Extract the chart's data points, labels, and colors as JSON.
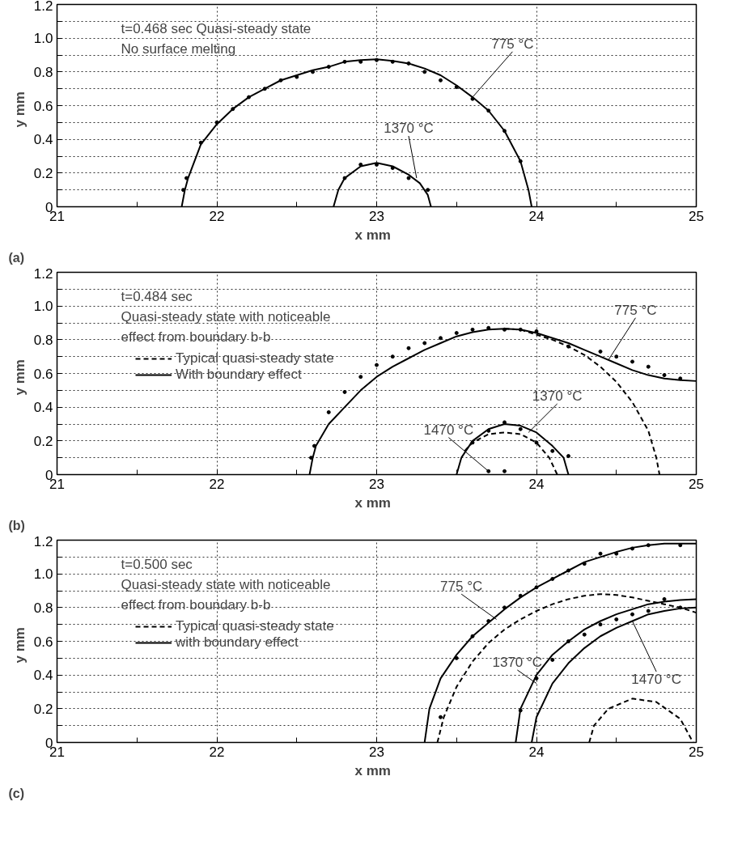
{
  "chart_data": [
    {
      "type": "line",
      "title": "(a)",
      "xlabel": "x   mm",
      "ylabel": "y   mm",
      "xlim": [
        21,
        25
      ],
      "ylim": [
        0,
        1.2
      ],
      "xticks": [
        21,
        {
          "value": 21.5,
          "label": null
        },
        22,
        {
          "value": 22.5,
          "label": null
        },
        23,
        {
          "value": 23.5,
          "label": null
        },
        24,
        {
          "value": 24.5,
          "label": null
        },
        25
      ],
      "yticks": [
        0,
        {
          "value": 0.1,
          "label": null
        },
        0.2,
        {
          "value": 0.3,
          "label": null
        },
        0.4,
        {
          "value": 0.5,
          "label": null
        },
        0.6,
        {
          "value": 0.7,
          "label": null
        },
        0.8,
        {
          "value": 0.9,
          "label": null
        },
        {
          "value": 1.0,
          "label": "1.0"
        },
        {
          "value": 1.1,
          "label": null
        },
        1.2
      ],
      "grid": true,
      "line_style": "solid",
      "legend": false,
      "annotations": [
        "t=0.468 sec    Quasi-steady state",
        "No surface melting",
        {
          "text": "775 °C",
          "x": 23.6,
          "y": 0.65
        },
        {
          "text": "1370 °C",
          "x": 23.25,
          "y": 0.17
        }
      ],
      "series": [
        {
          "color": "#000000",
          "x": [
            21.78,
            21.8,
            21.82,
            21.9,
            22.0,
            22.1,
            22.2,
            22.3,
            22.4,
            22.5,
            22.6,
            22.7,
            22.8,
            22.9,
            23.0,
            23.1,
            23.2,
            23.3,
            23.4,
            23.5,
            23.6,
            23.7,
            23.8,
            23.9,
            23.95,
            23.97
          ],
          "values": [
            0,
            0.1,
            0.17,
            0.37,
            0.49,
            0.58,
            0.65,
            0.7,
            0.75,
            0.78,
            0.81,
            0.83,
            0.86,
            0.87,
            0.875,
            0.865,
            0.85,
            0.82,
            0.78,
            0.72,
            0.65,
            0.57,
            0.45,
            0.27,
            0.1,
            0
          ]
        },
        {
          "color": "#000000",
          "x": [
            22.73,
            22.76,
            22.8,
            22.9,
            23.0,
            23.1,
            23.2,
            23.27,
            23.32,
            23.34
          ],
          "values": [
            0,
            0.1,
            0.17,
            0.24,
            0.26,
            0.24,
            0.19,
            0.14,
            0.07,
            0
          ]
        },
        {
          "type": "scatter",
          "marker": "circle",
          "color": "#000000",
          "x": [
            21.79,
            21.81,
            21.9,
            22.0,
            22.1,
            22.2,
            22.3,
            22.4,
            22.5,
            22.6,
            22.7,
            22.8,
            22.9,
            23.0,
            23.1,
            23.2,
            23.3,
            23.4,
            23.5,
            23.6,
            23.7,
            23.8,
            23.9
          ],
          "values": [
            0.1,
            0.17,
            0.38,
            0.5,
            0.58,
            0.65,
            0.7,
            0.75,
            0.77,
            0.8,
            0.83,
            0.86,
            0.86,
            0.87,
            0.86,
            0.85,
            0.8,
            0.75,
            0.71,
            0.64,
            0.57,
            0.45,
            0.27
          ]
        },
        {
          "type": "scatter",
          "marker": "circle",
          "color": "#000000",
          "x": [
            22.8,
            22.9,
            23.0,
            23.1,
            23.2,
            23.32
          ],
          "values": [
            0.17,
            0.25,
            0.25,
            0.23,
            0.17,
            0.1
          ]
        }
      ]
    },
    {
      "type": "line",
      "title": "(b)",
      "xlabel": "x   mm",
      "ylabel": "y   mm",
      "xlim": [
        21,
        25
      ],
      "ylim": [
        0,
        1.2
      ],
      "xticks": [
        21,
        {
          "value": 21.5,
          "label": null
        },
        22,
        {
          "value": 22.5,
          "label": null
        },
        23,
        {
          "value": 23.5,
          "label": null
        },
        24,
        {
          "value": 24.5,
          "label": null
        },
        25
      ],
      "yticks": [
        0,
        {
          "value": 0.1,
          "label": null
        },
        0.2,
        {
          "value": 0.3,
          "label": null
        },
        0.4,
        {
          "value": 0.5,
          "label": null
        },
        0.6,
        {
          "value": 0.7,
          "label": null
        },
        0.8,
        {
          "value": 0.9,
          "label": null
        },
        {
          "value": 1.0,
          "label": "1.0"
        },
        {
          "value": 1.1,
          "label": null
        },
        1.2
      ],
      "grid": true,
      "legend": "top left",
      "annotations": [
        "t=0.484 sec",
        "Quasi-steady state with noticeable",
        "effect from boundary b-b",
        {
          "text": "775 °C",
          "x": 24.45,
          "y": 0.68
        },
        {
          "text": "1370 °C",
          "x": 23.95,
          "y": 0.25
        },
        {
          "text": "1470 °C",
          "x": 23.7,
          "y": 0.02
        }
      ],
      "series": [
        {
          "line_style": "dashed",
          "name": "Typical quasi-steady state",
          "color": "#000000",
          "x": [
            23.8,
            23.9,
            24.0,
            24.1,
            24.2,
            24.3,
            24.4,
            24.5,
            24.6,
            24.7,
            24.75,
            24.77
          ],
          "values": [
            0.865,
            0.86,
            0.83,
            0.8,
            0.76,
            0.71,
            0.64,
            0.55,
            0.43,
            0.26,
            0.1,
            0
          ]
        },
        {
          "line_style": "solid",
          "name": "With boundary effect",
          "color": "#000000",
          "x": [
            22.58,
            22.6,
            22.62,
            22.7,
            22.8,
            22.9,
            23.0,
            23.1,
            23.2,
            23.3,
            23.4,
            23.5,
            23.6,
            23.7,
            23.8,
            23.9,
            24.0,
            24.1,
            24.2,
            24.3,
            24.4,
            24.5,
            24.6,
            24.7,
            24.8,
            24.9,
            25.0
          ],
          "values": [
            0,
            0.1,
            0.17,
            0.3,
            0.4,
            0.5,
            0.58,
            0.64,
            0.69,
            0.74,
            0.78,
            0.82,
            0.845,
            0.86,
            0.865,
            0.86,
            0.84,
            0.81,
            0.78,
            0.74,
            0.7,
            0.66,
            0.62,
            0.59,
            0.57,
            0.56,
            0.555
          ]
        },
        {
          "line_style": "solid",
          "color": "#000000",
          "x": [
            23.5,
            23.53,
            23.6,
            23.7,
            23.8,
            23.9,
            24.0,
            24.1,
            24.17,
            24.2
          ],
          "values": [
            0,
            0.1,
            0.2,
            0.27,
            0.3,
            0.29,
            0.25,
            0.17,
            0.1,
            0
          ]
        },
        {
          "line_style": "dashed",
          "color": "#000000",
          "x": [
            23.55,
            23.6,
            23.7,
            23.8,
            23.9,
            24.0,
            24.08,
            24.13
          ],
          "values": [
            0.14,
            0.19,
            0.24,
            0.25,
            0.24,
            0.19,
            0.1,
            0
          ]
        },
        {
          "type": "scatter",
          "marker": "circle",
          "color": "#000000",
          "x": [
            22.59,
            22.61,
            22.7,
            22.8,
            22.9,
            23.0,
            23.1,
            23.2,
            23.3,
            23.4,
            23.5,
            23.6,
            23.7,
            23.8,
            23.9,
            24.0,
            24.2,
            24.4,
            24.5,
            24.6,
            24.7,
            24.8,
            24.9
          ],
          "values": [
            0.1,
            0.17,
            0.37,
            0.49,
            0.58,
            0.65,
            0.7,
            0.75,
            0.78,
            0.81,
            0.84,
            0.86,
            0.87,
            0.86,
            0.86,
            0.85,
            0.76,
            0.73,
            0.7,
            0.67,
            0.64,
            0.59,
            0.57
          ]
        },
        {
          "type": "scatter",
          "marker": "circle",
          "color": "#000000",
          "x": [
            23.6,
            23.7,
            23.8,
            23.9,
            24.0,
            24.1,
            24.2
          ],
          "values": [
            0.19,
            0.26,
            0.31,
            0.27,
            0.19,
            0.14,
            0.11
          ]
        },
        {
          "type": "scatter",
          "marker": "circle",
          "color": "#000000",
          "x": [
            23.7,
            23.8
          ],
          "values": [
            0.02,
            0.02
          ]
        }
      ]
    },
    {
      "type": "line",
      "title": "(c)",
      "xlabel": "x   mm",
      "ylabel": "y   mm",
      "xlim": [
        21,
        25
      ],
      "ylim": [
        0,
        1.2
      ],
      "xticks": [
        21,
        {
          "value": 21.5,
          "label": null
        },
        22,
        {
          "value": 22.5,
          "label": null
        },
        23,
        {
          "value": 23.5,
          "label": null
        },
        24,
        {
          "value": 24.5,
          "label": null
        },
        25
      ],
      "yticks": [
        0,
        {
          "value": 0.1,
          "label": null
        },
        0.2,
        {
          "value": 0.3,
          "label": null
        },
        0.4,
        {
          "value": 0.5,
          "label": null
        },
        0.6,
        {
          "value": 0.7,
          "label": null
        },
        0.8,
        {
          "value": 0.9,
          "label": null
        },
        {
          "value": 1.0,
          "label": "1.0"
        },
        {
          "value": 1.1,
          "label": null
        },
        1.2
      ],
      "grid": true,
      "legend": "top left",
      "annotations": [
        "t=0.500 sec",
        "Quasi-steady state with noticeable",
        "effect from boundary b-b",
        {
          "text": "775 °C",
          "x": 23.75,
          "y": 0.73
        },
        {
          "text": "1370 °C",
          "x": 24.0,
          "y": 0.35
        },
        {
          "text": "1470 °C",
          "x": 24.6,
          "y": 0.72
        }
      ],
      "series": [
        {
          "line_style": "dashed",
          "name": "Typical quasi-steady state",
          "color": "#000000",
          "x": [
            23.38,
            23.42,
            23.5,
            23.6,
            23.7,
            23.8,
            23.9,
            24.0,
            24.1,
            24.2,
            24.3,
            24.4,
            24.5,
            24.6,
            24.7,
            24.8,
            24.9,
            25.0
          ],
          "values": [
            0,
            0.15,
            0.33,
            0.48,
            0.59,
            0.67,
            0.73,
            0.78,
            0.82,
            0.85,
            0.87,
            0.88,
            0.875,
            0.86,
            0.84,
            0.82,
            0.8,
            0.77
          ]
        },
        {
          "line_style": "solid",
          "name": "with boundary effect",
          "color": "#000000",
          "x": [
            23.3,
            23.33,
            23.4,
            23.5,
            23.6,
            23.7,
            23.8,
            23.9,
            24.0,
            24.1,
            24.2,
            24.3,
            24.4,
            24.5,
            24.6,
            24.7,
            24.8,
            24.9,
            25.0
          ],
          "values": [
            0,
            0.2,
            0.38,
            0.52,
            0.63,
            0.71,
            0.79,
            0.86,
            0.92,
            0.97,
            1.02,
            1.07,
            1.1,
            1.13,
            1.155,
            1.17,
            1.18,
            1.18,
            1.18
          ]
        },
        {
          "line_style": "solid",
          "color": "#000000",
          "x": [
            23.87,
            23.9,
            24.0,
            24.1,
            24.2,
            24.3,
            24.4,
            24.5,
            24.6,
            24.7,
            24.8,
            24.9,
            25.0
          ],
          "values": [
            0,
            0.2,
            0.4,
            0.52,
            0.6,
            0.67,
            0.72,
            0.76,
            0.79,
            0.82,
            0.835,
            0.845,
            0.85
          ]
        },
        {
          "line_style": "solid",
          "color": "#000000",
          "x": [
            23.97,
            24.0,
            24.1,
            24.2,
            24.3,
            24.4,
            24.5,
            24.6,
            24.7,
            24.8,
            24.9,
            25.0
          ],
          "values": [
            0,
            0.15,
            0.35,
            0.47,
            0.56,
            0.63,
            0.68,
            0.72,
            0.76,
            0.78,
            0.795,
            0.8
          ]
        },
        {
          "line_style": "dashed",
          "color": "#000000",
          "x": [
            24.33,
            24.36,
            24.45,
            24.6,
            24.75,
            24.9,
            24.98
          ],
          "values": [
            0,
            0.1,
            0.2,
            0.26,
            0.24,
            0.14,
            0
          ]
        },
        {
          "type": "scatter",
          "marker": "circle",
          "color": "#000000",
          "x": [
            23.4,
            23.5,
            23.6,
            23.7,
            23.8,
            23.9,
            24.0,
            24.1,
            24.2,
            24.3,
            24.4,
            24.5,
            24.6,
            24.7,
            24.9
          ],
          "values": [
            0.15,
            0.5,
            0.63,
            0.72,
            0.8,
            0.87,
            0.92,
            0.97,
            1.02,
            1.06,
            1.12,
            1.12,
            1.15,
            1.17,
            1.17
          ]
        },
        {
          "type": "scatter",
          "marker": "circle",
          "color": "#000000",
          "x": [
            23.9,
            24.0,
            24.1,
            24.2,
            24.3,
            24.4,
            24.5,
            24.6,
            24.7,
            24.8,
            24.9
          ],
          "values": [
            0.19,
            0.38,
            0.49,
            0.6,
            0.64,
            0.7,
            0.73,
            0.76,
            0.78,
            0.85,
            0.8
          ]
        }
      ]
    }
  ]
}
